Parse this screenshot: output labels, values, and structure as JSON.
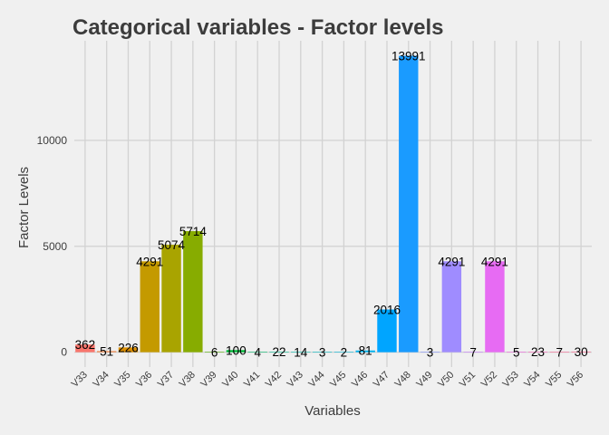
{
  "chart_data": {
    "type": "bar",
    "title": "Categorical variables - Factor levels",
    "xlabel": "Variables",
    "ylabel": "Factor Levels",
    "categories": [
      "V33",
      "V34",
      "V35",
      "V36",
      "V37",
      "V38",
      "V39",
      "V40",
      "V41",
      "V42",
      "V43",
      "V44",
      "V45",
      "V46",
      "V47",
      "V48",
      "V49",
      "V50",
      "V51",
      "V52",
      "V53",
      "V54",
      "V55",
      "V56"
    ],
    "values": [
      362,
      51,
      226,
      4291,
      5074,
      5714,
      6,
      100,
      4,
      22,
      14,
      3,
      2,
      81,
      2016,
      13991,
      3,
      4291,
      7,
      4291,
      5,
      23,
      7,
      30
    ],
    "yticks": [
      0,
      5000,
      10000
    ],
    "ylim": [
      -700,
      14700
    ],
    "grid": true,
    "legend": "none",
    "colors": [
      "#F8766D",
      "#ED8141",
      "#DB8E00",
      "#C49A00",
      "#A9A400",
      "#87AC00",
      "#53B400",
      "#00BA38",
      "#00BE6D",
      "#00C094",
      "#00C1B2",
      "#00BFC4",
      "#00BBDB",
      "#00B4EF",
      "#00A5FF",
      "#1A9BFF",
      "#8494FF",
      "#9F8CFF",
      "#C77CFF",
      "#E76BF3",
      "#F564E3",
      "#FF62BC",
      "#FF6A98",
      "#FF6C91"
    ]
  }
}
